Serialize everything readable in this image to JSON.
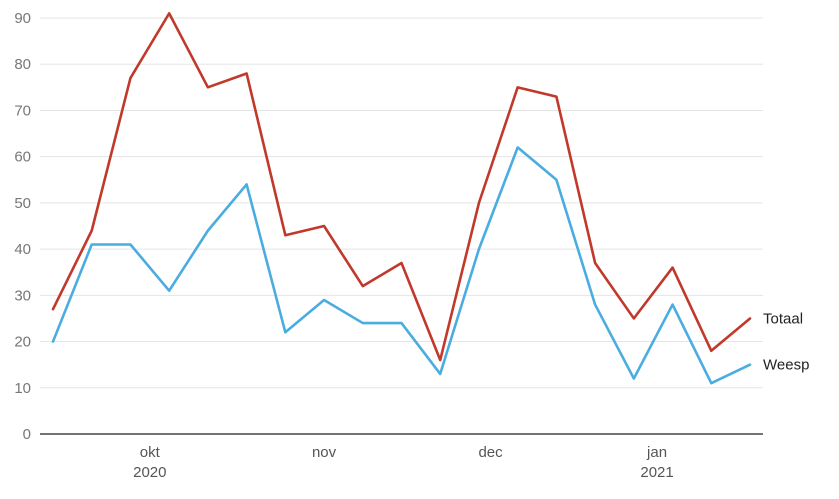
{
  "chart_data": {
    "type": "line",
    "title": "",
    "xlabel": "",
    "ylabel": "",
    "ylim": [
      0,
      90
    ],
    "y_ticks": [
      0,
      10,
      20,
      30,
      40,
      50,
      60,
      70,
      80,
      90
    ],
    "grid": true,
    "x_tick_labels": [
      {
        "index": 2.5,
        "month": "okt",
        "year": "2020"
      },
      {
        "index": 7,
        "month": "nov",
        "year": ""
      },
      {
        "index": 11.3,
        "month": "dec",
        "year": ""
      },
      {
        "index": 15.6,
        "month": "jan",
        "year": "2021"
      }
    ],
    "x_count": 19,
    "series": [
      {
        "name": "Totaal",
        "color": "#c0392b",
        "values": [
          27,
          44,
          77,
          91,
          75,
          78,
          43,
          45,
          32,
          37,
          16,
          50,
          75,
          73,
          37,
          25,
          36,
          18,
          25
        ]
      },
      {
        "name": "Weesp",
        "color": "#4aace0",
        "values": [
          20,
          41,
          41,
          31,
          44,
          54,
          22,
          29,
          24,
          24,
          13,
          40,
          62,
          55,
          28,
          12,
          28,
          11,
          15
        ]
      }
    ]
  }
}
